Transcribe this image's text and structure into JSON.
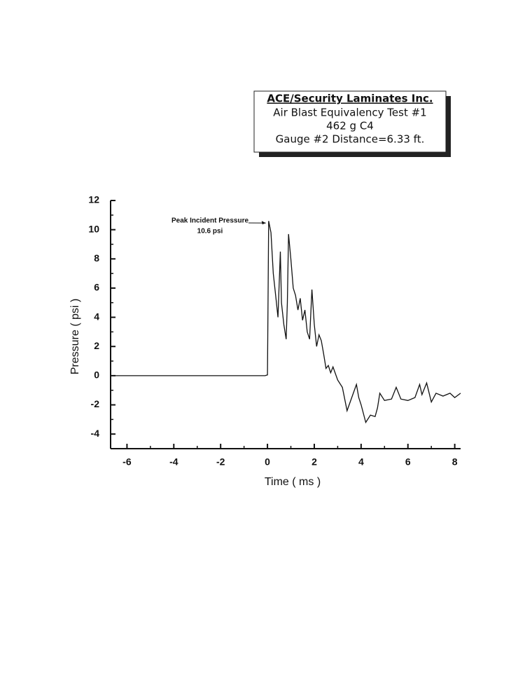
{
  "chart_data": {
    "type": "line",
    "title": "ACE/Security Laminates Inc.",
    "subtitle": [
      "Air Blast Equivalency Test #1",
      "462 g C4",
      "Gauge #2 Distance=6.33 ft."
    ],
    "xlabel": "Time ( ms )",
    "ylabel": "Pressure ( psi )",
    "annotation": [
      "Peak Incident Pressure",
      "10.6 psi"
    ],
    "xlim": [
      -6.7,
      8.25
    ],
    "ylim": [
      -5,
      12
    ],
    "xticks": [
      -6,
      -4,
      -2,
      0,
      2,
      4,
      6,
      8
    ],
    "yticks": [
      -4,
      -2,
      0,
      2,
      4,
      6,
      8,
      10,
      12
    ],
    "grid": false,
    "series": [
      {
        "name": "Pressure",
        "color": "#111111",
        "x": [
          -6.7,
          -0.1,
          0,
          0.05,
          0.15,
          0.25,
          0.35,
          0.45,
          0.55,
          0.6,
          0.7,
          0.8,
          0.85,
          0.9,
          1.0,
          1.1,
          1.2,
          1.3,
          1.4,
          1.5,
          1.6,
          1.7,
          1.8,
          1.9,
          2.0,
          2.1,
          2.2,
          2.3,
          2.4,
          2.5,
          2.6,
          2.7,
          2.8,
          3.0,
          3.2,
          3.4,
          3.6,
          3.8,
          3.9,
          4.0,
          4.2,
          4.4,
          4.6,
          4.7,
          4.8,
          5.0,
          5.3,
          5.5,
          5.7,
          6.0,
          6.3,
          6.5,
          6.6,
          6.8,
          7.0,
          7.2,
          7.5,
          7.8,
          8.0,
          8.25
        ],
        "values": [
          0,
          0,
          0.05,
          10.6,
          9.8,
          7,
          5.5,
          4,
          8.5,
          5,
          3.5,
          2.5,
          5,
          9.7,
          8,
          6,
          5.5,
          4.5,
          5.3,
          3.8,
          4.5,
          3,
          2.5,
          5.9,
          3.5,
          2,
          2.8,
          2.4,
          1.5,
          0.5,
          0.7,
          0.2,
          0.6,
          -0.3,
          -0.8,
          -2.4,
          -1.5,
          -0.6,
          -1.5,
          -2,
          -3.2,
          -2.7,
          -2.8,
          -2.2,
          -1.2,
          -1.7,
          -1.6,
          -0.8,
          -1.6,
          -1.7,
          -1.5,
          -0.6,
          -1.3,
          -0.5,
          -1.8,
          -1.2,
          -1.4,
          -1.2,
          -1.5,
          -1.2
        ]
      }
    ]
  }
}
